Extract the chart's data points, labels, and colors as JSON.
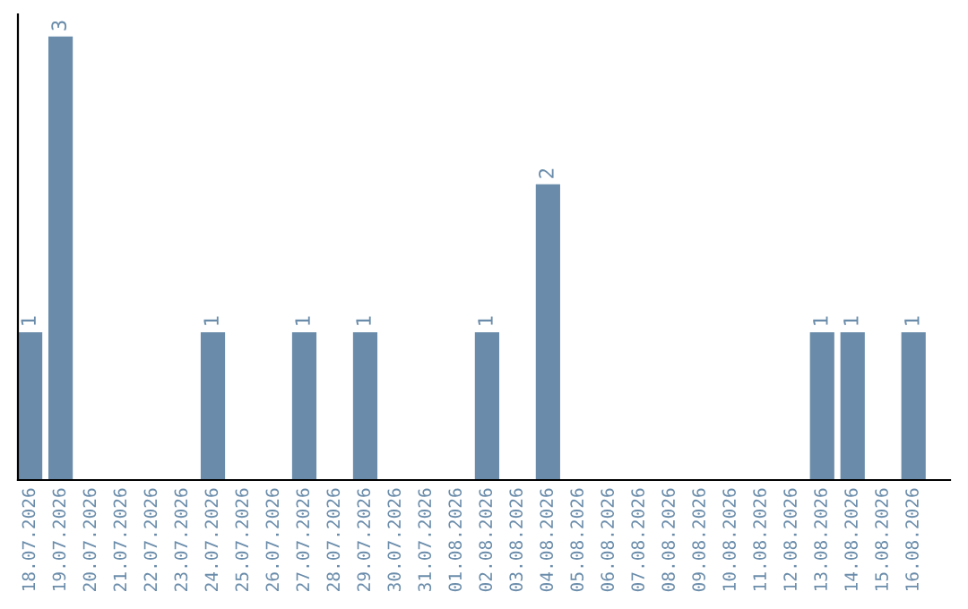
{
  "chart_data": {
    "type": "bar",
    "categories": [
      "18.07.2026",
      "19.07.2026",
      "20.07.2026",
      "21.07.2026",
      "22.07.2026",
      "23.07.2026",
      "24.07.2026",
      "25.07.2026",
      "26.07.2026",
      "27.07.2026",
      "28.07.2026",
      "29.07.2026",
      "30.07.2026",
      "31.07.2026",
      "01.08.2026",
      "02.08.2026",
      "03.08.2026",
      "04.08.2026",
      "05.08.2026",
      "06.08.2026",
      "07.08.2026",
      "08.08.2026",
      "09.08.2026",
      "10.08.2026",
      "11.08.2026",
      "12.08.2026",
      "13.08.2026",
      "14.08.2026",
      "15.08.2026",
      "16.08.2026"
    ],
    "values": [
      1,
      3,
      0,
      0,
      0,
      0,
      1,
      0,
      0,
      1,
      0,
      1,
      0,
      0,
      0,
      1,
      0,
      2,
      0,
      0,
      0,
      0,
      0,
      0,
      0,
      0,
      1,
      1,
      0,
      1
    ],
    "value_labels": [
      "1",
      "3",
      null,
      null,
      null,
      null,
      "1",
      null,
      null,
      "1",
      null,
      "1",
      null,
      null,
      null,
      "1",
      null,
      "2",
      null,
      null,
      null,
      null,
      null,
      null,
      null,
      null,
      "1",
      "1",
      null,
      "1"
    ],
    "color": "#6a8caa",
    "grid": false,
    "legend": false
  }
}
